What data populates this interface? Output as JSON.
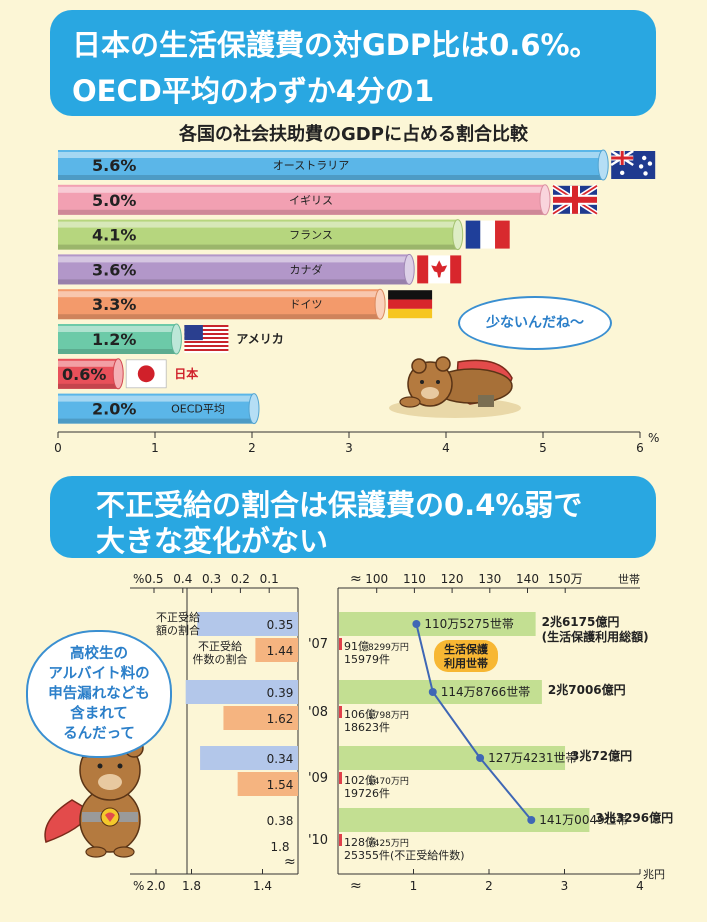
{
  "banner1": {
    "line1": "日本の生活保護費の対GDP比は0.6%。",
    "line2": "OECD平均のわずか4分の1"
  },
  "banner2": {
    "line1": "不正受給の割合は保護費の0.4%弱で",
    "line2": "大きな変化がない"
  },
  "bubbles": {
    "small": "少ないんだね～",
    "large": [
      "高校生の",
      "アルバイト料の",
      "申告漏れなども",
      "含まれて",
      "るんだって"
    ]
  },
  "chart_data": [
    {
      "type": "bar",
      "title": "各国の社会扶助費のGDPに占める割合比較",
      "orientation": "horizontal",
      "categories": [
        "オーストラリア",
        "イギリス",
        "フランス",
        "カナダ",
        "ドイツ",
        "アメリカ",
        "日本",
        "OECD平均"
      ],
      "values": [
        5.6,
        5.0,
        4.1,
        3.6,
        3.3,
        1.2,
        0.6,
        2.0
      ],
      "value_labels": [
        "5.6%",
        "5.0%",
        "4.1%",
        "3.6%",
        "3.3%",
        "1.2%",
        "0.6%",
        "2.0%"
      ],
      "colors": [
        "#5bb6e8",
        "#f2a0b2",
        "#b6d67e",
        "#b297c9",
        "#f39a6b",
        "#6ccaa8",
        "#e8505a",
        "#5bb6e8"
      ],
      "xlim": [
        0,
        6
      ],
      "xticks": [
        "0",
        "1",
        "2",
        "3",
        "4",
        "5",
        "6"
      ],
      "xunit": "%",
      "flags": [
        "australia",
        "uk",
        "france",
        "canada",
        "germany",
        "usa",
        "japan",
        "none"
      ]
    },
    {
      "type": "bar",
      "orientation": "horizontal-reversed",
      "years": [
        "'07",
        "'08",
        "'09",
        "'10"
      ],
      "series": [
        {
          "name": "不正受給額の割合",
          "label_lines": [
            "不正受給",
            "額の割合"
          ],
          "values": [
            0.35,
            0.39,
            0.34,
            0.38
          ],
          "value_labels": [
            "0.35",
            "0.39",
            "0.34",
            "0.38"
          ],
          "color": "#b3c7ea"
        },
        {
          "name": "不正受給件数の割合",
          "label_lines": [
            "不正受給",
            "件数の割合"
          ],
          "values": [
            1.44,
            1.62,
            1.54,
            1.8
          ],
          "value_labels": [
            "1.44",
            "1.62",
            "1.54",
            "1.8"
          ],
          "color": "#f5b480"
        }
      ],
      "top_axis": {
        "unit": "%",
        "ticks": [
          "0.5",
          "0.4",
          "0.3",
          "0.2",
          "0.1"
        ],
        "values": [
          0.5,
          0.4,
          0.3,
          0.2,
          0.1
        ]
      },
      "bottom_axis": {
        "unit": "%",
        "ticks": [
          "2.0",
          "1.8",
          "1.4"
        ],
        "values": [
          2.0,
          1.8,
          1.4
        ]
      }
    },
    {
      "type": "bar+line",
      "years": [
        "'07",
        "'08",
        "'09",
        "'10"
      ],
      "bars": {
        "name": "生活保護利用総額",
        "unit": "兆円",
        "values": [
          2.6175,
          2.7006,
          3.0072,
          3.3296
        ],
        "value_labels": [
          "2兆6175億円",
          "2兆7006億円",
          "3兆72億円",
          "3兆3296億円"
        ],
        "extra_label": "(生活保護利用総額)",
        "color": "#c3df92"
      },
      "line": {
        "name": "生活保護利用世帯",
        "unit": "万世帯",
        "values": [
          110.5275,
          114.8766,
          127.4231,
          141.0049
        ],
        "value_labels": [
          "110万5275世帯",
          "114万8766世帯",
          "127万4231世帯",
          "141万0049世帯"
        ],
        "color": "#3f67b5"
      },
      "fraud_amount_labels": [
        [
          "91億",
          "8299万円"
        ],
        [
          "106億",
          "1798万円"
        ],
        [
          "102億",
          "1470万円"
        ],
        [
          "128億",
          "7425万円"
        ]
      ],
      "fraud_count_labels": [
        "15979件",
        "18623件",
        "19726件",
        "25355件(不正受給件数)"
      ],
      "top_axis": {
        "unit": "世帯",
        "ticks": [
          "100",
          "110",
          "120",
          "130",
          "140",
          "150万"
        ],
        "values": [
          100,
          110,
          120,
          130,
          140,
          150
        ],
        "range": [
          90,
          170
        ]
      },
      "bottom_axis": {
        "unit": "兆円",
        "ticks": [
          "1",
          "2",
          "3",
          "4"
        ],
        "values": [
          1,
          2,
          3,
          4
        ],
        "range": [
          0,
          4
        ]
      },
      "line_tag": [
        "生活保護",
        "利用世帯"
      ]
    }
  ]
}
